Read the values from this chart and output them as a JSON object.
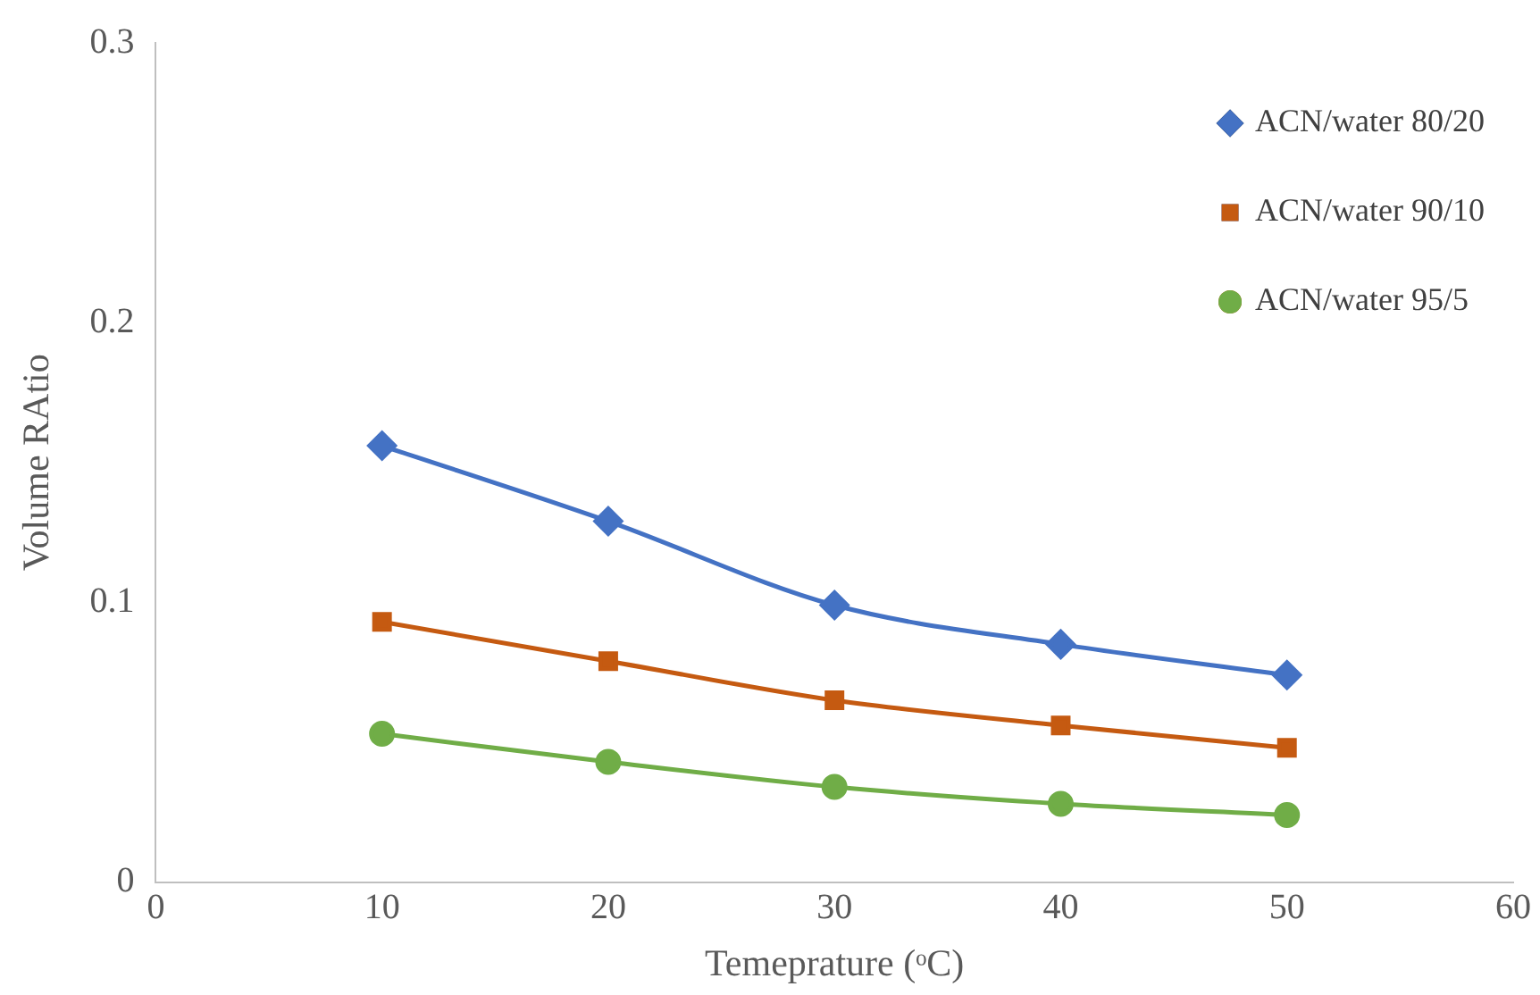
{
  "chart_data": {
    "type": "line",
    "xlabel": "Temeprature (ᵒC)",
    "ylabel": "Volume RAtio",
    "x": [
      10,
      20,
      30,
      40,
      50
    ],
    "series": [
      {
        "name": "ACN/water 80/20",
        "color": "#4472c4",
        "marker": "diamond",
        "values": [
          0.156,
          0.129,
          0.099,
          0.085,
          0.074
        ]
      },
      {
        "name": "ACN/water 90/10",
        "color": "#c55a11",
        "marker": "square",
        "values": [
          0.093,
          0.079,
          0.065,
          0.056,
          0.048
        ]
      },
      {
        "name": "ACN/water 95/5",
        "color": "#70ad47",
        "marker": "circle",
        "values": [
          0.053,
          0.043,
          0.034,
          0.028,
          0.024
        ]
      }
    ],
    "xlim": [
      0,
      60
    ],
    "xticks": [
      0,
      10,
      20,
      30,
      40,
      50,
      60
    ],
    "ylim": [
      0,
      0.3
    ],
    "yticks": [
      0,
      0.1,
      0.2,
      0.3
    ],
    "grid": false,
    "legend": "top right",
    "line_style": "solid"
  }
}
